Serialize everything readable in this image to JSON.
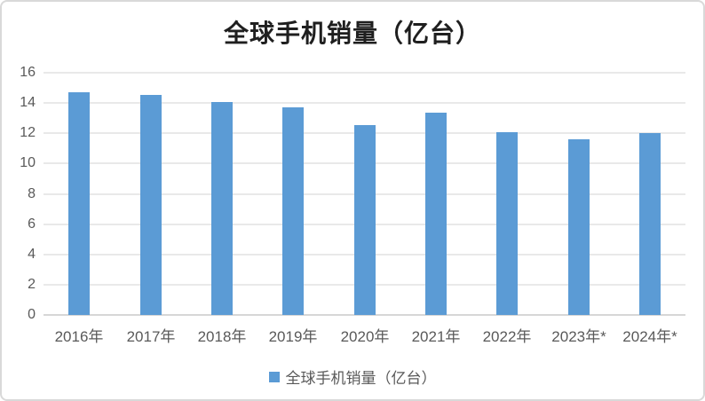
{
  "colors": {
    "bar": "#5b9bd5",
    "grid": "#e9e9e9",
    "axis": "#d6d6d6",
    "tick_label": "#595959",
    "title": "#1f1f1f",
    "border": "#d9d9d9"
  },
  "chart_data": {
    "type": "bar",
    "title": "全球手机销量（亿台）",
    "categories": [
      "2016年",
      "2017年",
      "2018年",
      "2019年",
      "2020年",
      "2021年",
      "2022年",
      "2023年*",
      "2024年*"
    ],
    "values": [
      14.7,
      14.55,
      14.05,
      13.7,
      12.55,
      13.35,
      12.05,
      11.6,
      12.0
    ],
    "xlabel": "",
    "ylabel": "",
    "ylim": [
      0,
      16
    ],
    "yticks": [
      0,
      2,
      4,
      6,
      8,
      10,
      12,
      14,
      16
    ],
    "grid": true,
    "legend": {
      "label": "全球手机销量（亿台）",
      "position": "bottom"
    }
  }
}
